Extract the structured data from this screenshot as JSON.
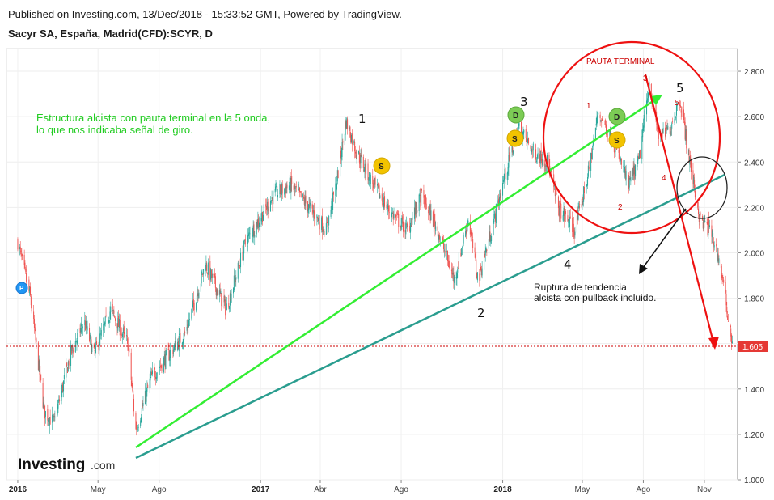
{
  "header": {
    "published": "Published on Investing.com, 13/Dec/2018 - 15:33:52 GMT, Powered by TradingView.",
    "instrument": "Sacyr SA, España, Madrid(CFD):SCYR, D"
  },
  "annotations": {
    "structure_line1": "Estructura alcista con pauta terminal en la 5 onda,",
    "structure_line2": "lo que nos indicaba señal de giro.",
    "breakout_line1": "Ruptura de tendencia",
    "breakout_line2": "alcista con pullback incluido.",
    "pauta": "PAUTA TERMINAL"
  },
  "waves_major": [
    "1",
    "2",
    "3",
    "4",
    "5"
  ],
  "waves_minor": [
    "1",
    "2",
    "3",
    "4",
    "5"
  ],
  "badges": {
    "d": "D",
    "s": "S",
    "p": "P"
  },
  "logo": {
    "main": "Investing",
    "suffix": ".com"
  },
  "colors": {
    "up": "#26a69a",
    "down": "#ef5350",
    "green_line": "#33ee33",
    "teal_line": "#2a9d8f",
    "red": "#ee1111"
  },
  "chart_data": {
    "type": "candlestick",
    "title": "Sacyr SA, España, Madrid(CFD):SCYR, D",
    "x_ticks": [
      "2016",
      "May",
      "Ago",
      "2017",
      "Abr",
      "Ago",
      "2018",
      "May",
      "Ago",
      "Nov"
    ],
    "y_ticks": [
      "1.000",
      "1.200",
      "1.400",
      "1.600",
      "1.800",
      "2.000",
      "2.200",
      "2.400",
      "2.600",
      "2.800"
    ],
    "ylim": [
      1.0,
      2.9
    ],
    "last_price": "1.605",
    "approx_close_path": [
      {
        "date": "2016-01-01",
        "price": 2.05
      },
      {
        "date": "2016-01-20",
        "price": 1.8
      },
      {
        "date": "2016-02-10",
        "price": 1.3
      },
      {
        "date": "2016-02-25",
        "price": 1.25
      },
      {
        "date": "2016-03-20",
        "price": 1.55
      },
      {
        "date": "2016-04-10",
        "price": 1.7
      },
      {
        "date": "2016-04-25",
        "price": 1.55
      },
      {
        "date": "2016-05-20",
        "price": 1.75
      },
      {
        "date": "2016-06-15",
        "price": 1.6
      },
      {
        "date": "2016-06-27",
        "price": 1.22
      },
      {
        "date": "2016-07-20",
        "price": 1.45
      },
      {
        "date": "2016-08-15",
        "price": 1.55
      },
      {
        "date": "2016-09-10",
        "price": 1.65
      },
      {
        "date": "2016-10-10",
        "price": 1.95
      },
      {
        "date": "2016-11-10",
        "price": 1.75
      },
      {
        "date": "2016-12-10",
        "price": 2.05
      },
      {
        "date": "2017-01-20",
        "price": 2.25
      },
      {
        "date": "2017-02-15",
        "price": 2.3
      },
      {
        "date": "2017-03-15",
        "price": 2.2
      },
      {
        "date": "2017-04-10",
        "price": 2.1
      },
      {
        "date": "2017-04-25",
        "price": 2.3
      },
      {
        "date": "2017-05-10",
        "price": 2.58
      },
      {
        "date": "2017-05-25",
        "price": 2.45
      },
      {
        "date": "2017-06-20",
        "price": 2.3
      },
      {
        "date": "2017-07-15",
        "price": 2.18
      },
      {
        "date": "2017-08-10",
        "price": 2.1
      },
      {
        "date": "2017-09-01",
        "price": 2.25
      },
      {
        "date": "2017-09-25",
        "price": 2.1
      },
      {
        "date": "2017-10-20",
        "price": 1.88
      },
      {
        "date": "2017-11-10",
        "price": 2.15
      },
      {
        "date": "2017-11-25",
        "price": 1.88
      },
      {
        "date": "2017-12-15",
        "price": 2.1
      },
      {
        "date": "2018-01-05",
        "price": 2.35
      },
      {
        "date": "2018-01-25",
        "price": 2.55
      },
      {
        "date": "2018-02-15",
        "price": 2.45
      },
      {
        "date": "2018-03-10",
        "price": 2.4
      },
      {
        "date": "2018-03-25",
        "price": 2.2
      },
      {
        "date": "2018-04-20",
        "price": 2.1
      },
      {
        "date": "2018-05-10",
        "price": 2.35
      },
      {
        "date": "2018-05-25",
        "price": 2.62
      },
      {
        "date": "2018-06-15",
        "price": 2.5
      },
      {
        "date": "2018-07-10",
        "price": 2.3
      },
      {
        "date": "2018-07-25",
        "price": 2.4
      },
      {
        "date": "2018-08-10",
        "price": 2.75
      },
      {
        "date": "2018-08-25",
        "price": 2.5
      },
      {
        "date": "2018-09-10",
        "price": 2.55
      },
      {
        "date": "2018-09-25",
        "price": 2.68
      },
      {
        "date": "2018-10-10",
        "price": 2.4
      },
      {
        "date": "2018-10-25",
        "price": 2.15
      },
      {
        "date": "2018-11-10",
        "price": 2.1
      },
      {
        "date": "2018-11-25",
        "price": 1.95
      },
      {
        "date": "2018-12-05",
        "price": 1.75
      },
      {
        "date": "2018-12-13",
        "price": 1.61
      }
    ]
  }
}
